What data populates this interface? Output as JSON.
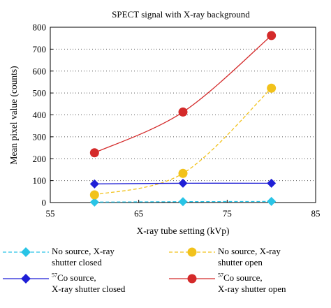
{
  "chart_data": {
    "type": "line",
    "title": "SPECT signal with X-ray background",
    "xlabel": "X-ray tube setting (kVp)",
    "ylabel": "Mean pixel value (counts)",
    "xlim": [
      55,
      85
    ],
    "ylim": [
      0,
      800
    ],
    "xticks": [
      "55",
      "65",
      "75",
      "85"
    ],
    "yticks": [
      "0",
      "100",
      "200",
      "300",
      "400",
      "500",
      "600",
      "700",
      "800"
    ],
    "grid": "horizontal dotted",
    "legend_position": "bottom",
    "x": [
      60,
      70,
      80
    ],
    "series": [
      {
        "name_line1": "No source, X-ray",
        "name_line2": "shutter closed",
        "values": [
          2,
          4,
          5
        ],
        "color": "#29c4e6",
        "marker": "diamond",
        "line": "dashed"
      },
      {
        "name_line1": "No source, X-ray",
        "name_line2": "shutter open",
        "values": [
          35,
          133,
          522
        ],
        "color": "#f2c21b",
        "marker": "circle",
        "line": "dashed"
      },
      {
        "name_sup": "57",
        "name_line1": "Co source,",
        "name_line2": "X-ray shutter closed",
        "values": [
          85,
          88,
          88
        ],
        "color": "#1f1fd6",
        "marker": "diamond",
        "line": "solid"
      },
      {
        "name_sup": "57",
        "name_line1": "Co source,",
        "name_line2": "X-ray shutter open",
        "values": [
          227,
          413,
          762
        ],
        "color": "#d42a2a",
        "marker": "circle",
        "line": "solid"
      }
    ]
  }
}
